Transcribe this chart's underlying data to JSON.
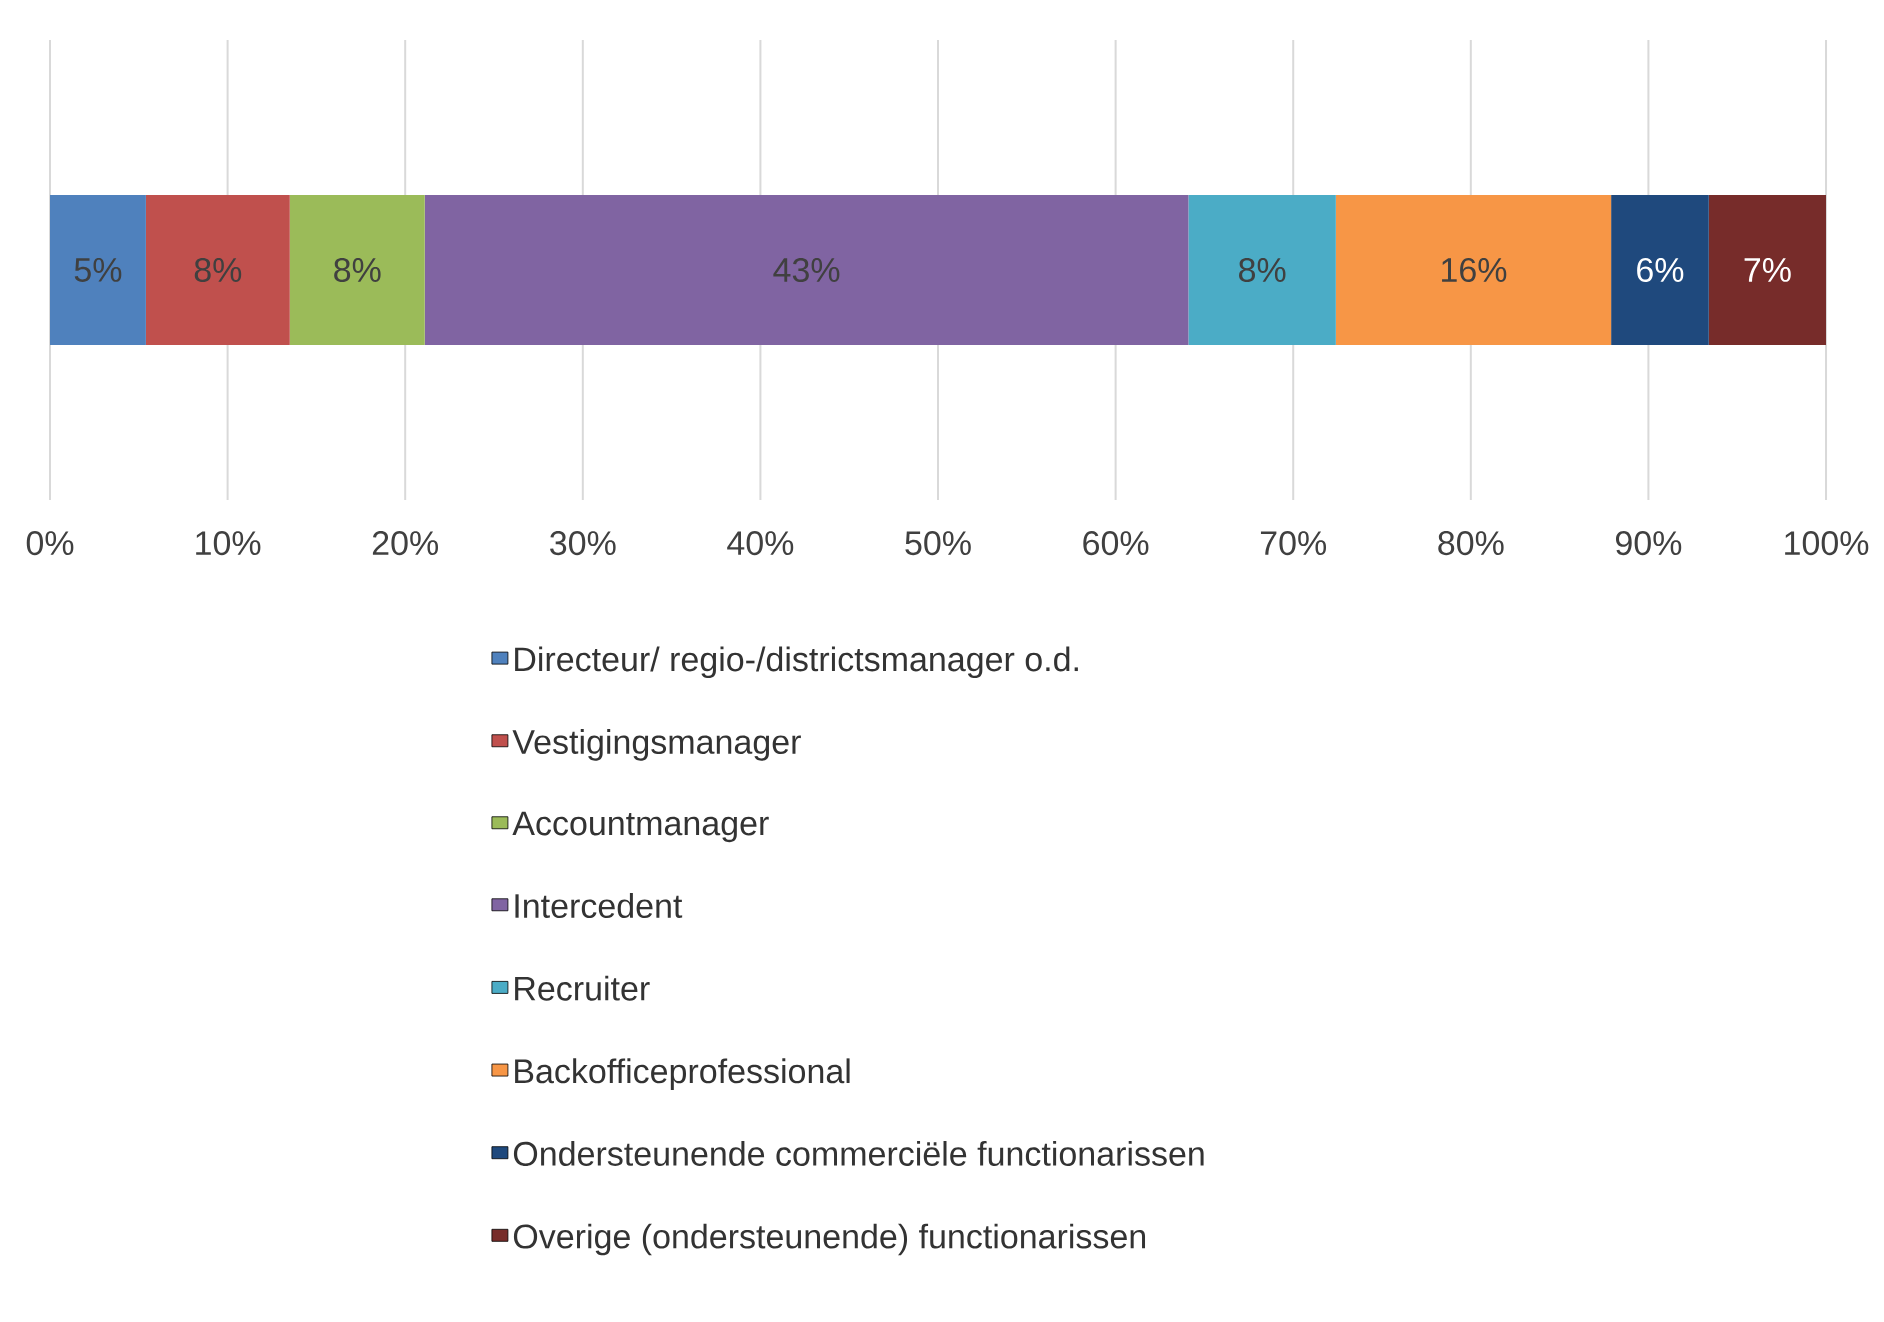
{
  "chart_data": {
    "type": "bar",
    "orientation": "horizontal",
    "stacked": true,
    "categories": [
      null
    ],
    "series": [
      {
        "name": "Directeur/ regio-/districtsmanager o.d.",
        "color": "#4f81bd",
        "values": [
          5.4
        ],
        "value_labels": [
          "5%"
        ]
      },
      {
        "name": "Vestigingsmanager",
        "color": "#c0504d",
        "values": [
          8.1
        ],
        "value_labels": [
          "8%"
        ]
      },
      {
        "name": "Accountmanager",
        "color": "#9bbb59",
        "values": [
          7.6
        ],
        "value_labels": [
          "8%"
        ]
      },
      {
        "name": "Intercedent",
        "color": "#8064a2",
        "values": [
          43.0
        ],
        "value_labels": [
          "43%"
        ]
      },
      {
        "name": "Recruiter",
        "color": "#4bacc6",
        "values": [
          8.3
        ],
        "value_labels": [
          "8%"
        ]
      },
      {
        "name": "Backofficeprofessional",
        "color": "#f79646",
        "values": [
          15.5
        ],
        "value_labels": [
          "16%"
        ]
      },
      {
        "name": "Ondersteunende commerciële functionarissen",
        "color": "#1f497d",
        "values": [
          5.5
        ],
        "value_labels": [
          "6%"
        ]
      },
      {
        "name": "Overige (ondersteunende) functionarissen",
        "color": "#772c2a",
        "values": [
          6.6
        ],
        "value_labels": [
          "7%"
        ]
      }
    ],
    "xlim": [
      0,
      100
    ],
    "xticks": [
      {
        "value": 0,
        "label": "0%"
      },
      {
        "value": 10,
        "label": "10%"
      },
      {
        "value": 20,
        "label": "20%"
      },
      {
        "value": 30,
        "label": "30%"
      },
      {
        "value": 40,
        "label": "40%"
      },
      {
        "value": 50,
        "label": "50%"
      },
      {
        "value": 60,
        "label": "60%"
      },
      {
        "value": 70,
        "label": "70%"
      },
      {
        "value": 80,
        "label": "80%"
      },
      {
        "value": 90,
        "label": "90%"
      },
      {
        "value": 100,
        "label": "100%"
      }
    ],
    "grid": "x",
    "legend": "bottom",
    "tick_labels": "x"
  }
}
